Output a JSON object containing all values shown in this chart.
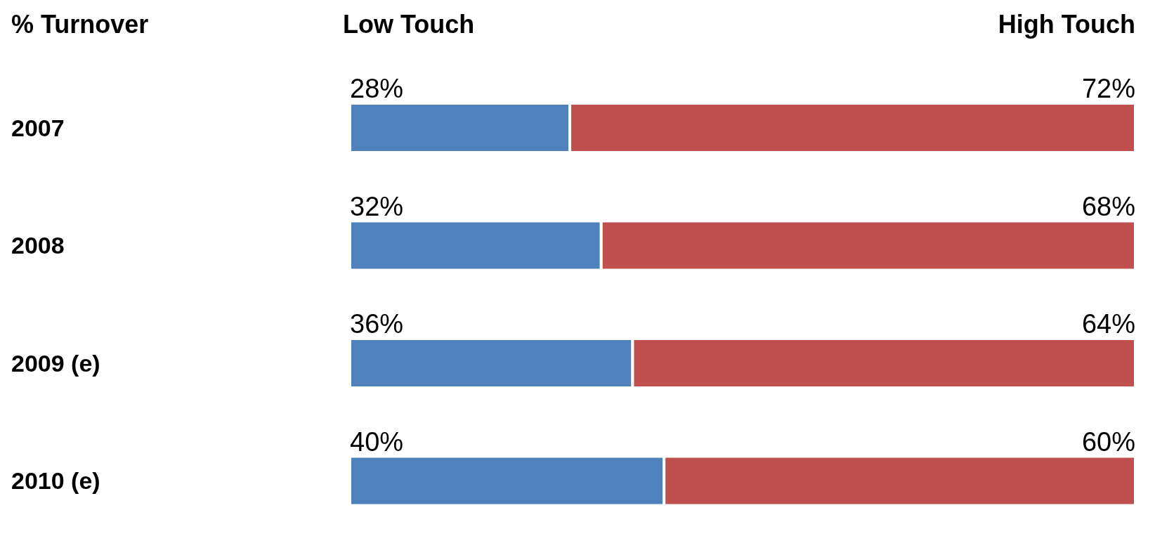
{
  "chart_data": {
    "type": "bar",
    "orientation": "horizontal",
    "stacked": true,
    "ylabel": "% Turnover",
    "categories": [
      "2007",
      "2008",
      "2009 (e)",
      "2010 (e)"
    ],
    "series": [
      {
        "name": "Low Touch",
        "color": "#4f81bd",
        "values": [
          28,
          32,
          36,
          40
        ],
        "value_labels": [
          "28%",
          "32%",
          "36%",
          "40%"
        ]
      },
      {
        "name": "High Touch",
        "color": "#c0504d",
        "values": [
          72,
          68,
          64,
          60
        ],
        "value_labels": [
          "72%",
          "68%",
          "64%",
          "60%"
        ]
      }
    ],
    "xlim": [
      0,
      100
    ],
    "legend": "top",
    "tick_labels": "y"
  }
}
